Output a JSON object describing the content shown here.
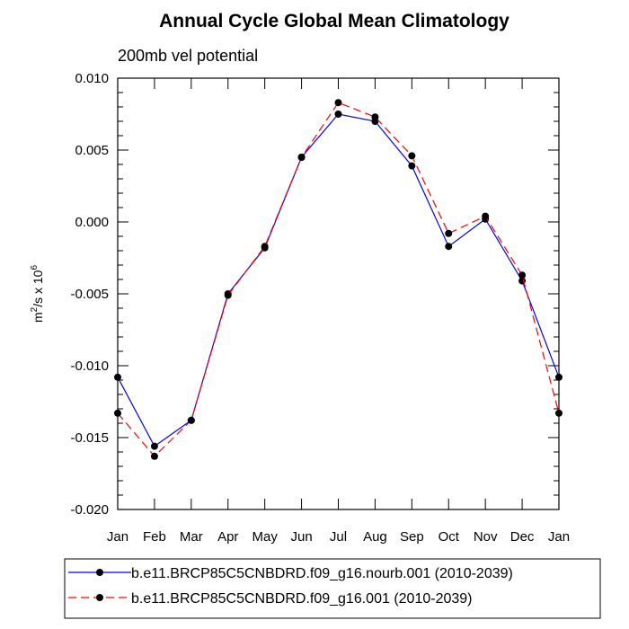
{
  "chart_data": {
    "type": "line",
    "title": "Annual Cycle Global Mean Climatology",
    "subtitle": "200mb vel potential",
    "ylabel": {
      "base": "m",
      "sup1": "2",
      "mid": "/s x 10",
      "sup2": "6"
    },
    "xlabel": "",
    "categories": [
      "Jan",
      "Feb",
      "Mar",
      "Apr",
      "May",
      "Jun",
      "Jul",
      "Aug",
      "Sep",
      "Oct",
      "Nov",
      "Dec",
      "Jan"
    ],
    "ylim": [
      -0.02,
      0.01
    ],
    "yticks": [
      -0.02,
      -0.015,
      -0.01,
      -0.005,
      0.0,
      0.005,
      0.01
    ],
    "ytick_labels": [
      "-0.020",
      "-0.015",
      "-0.010",
      "-0.005",
      "0.000",
      "0.005",
      "0.010"
    ],
    "series": [
      {
        "name": "b.e11.BRCP85C5CNBDRD.f09_g16.nourb.001 (2010-2039)",
        "color": "#0000ff",
        "dash": "solid",
        "values": [
          -0.0108,
          -0.0156,
          -0.0138,
          -0.005,
          -0.0018,
          0.0045,
          0.0075,
          0.007,
          0.0039,
          -0.0017,
          0.0002,
          -0.0041,
          -0.0108
        ]
      },
      {
        "name": "b.e11.BRCP85C5CNBDRD.f09_g16.001 (2010-2039)",
        "color": "#ff0000",
        "dash": "dashed",
        "values": [
          -0.0133,
          -0.0163,
          -0.0138,
          -0.0051,
          -0.0017,
          0.0045,
          0.0083,
          0.0073,
          0.0046,
          -0.0008,
          0.0004,
          -0.0037,
          -0.0133
        ]
      }
    ]
  }
}
